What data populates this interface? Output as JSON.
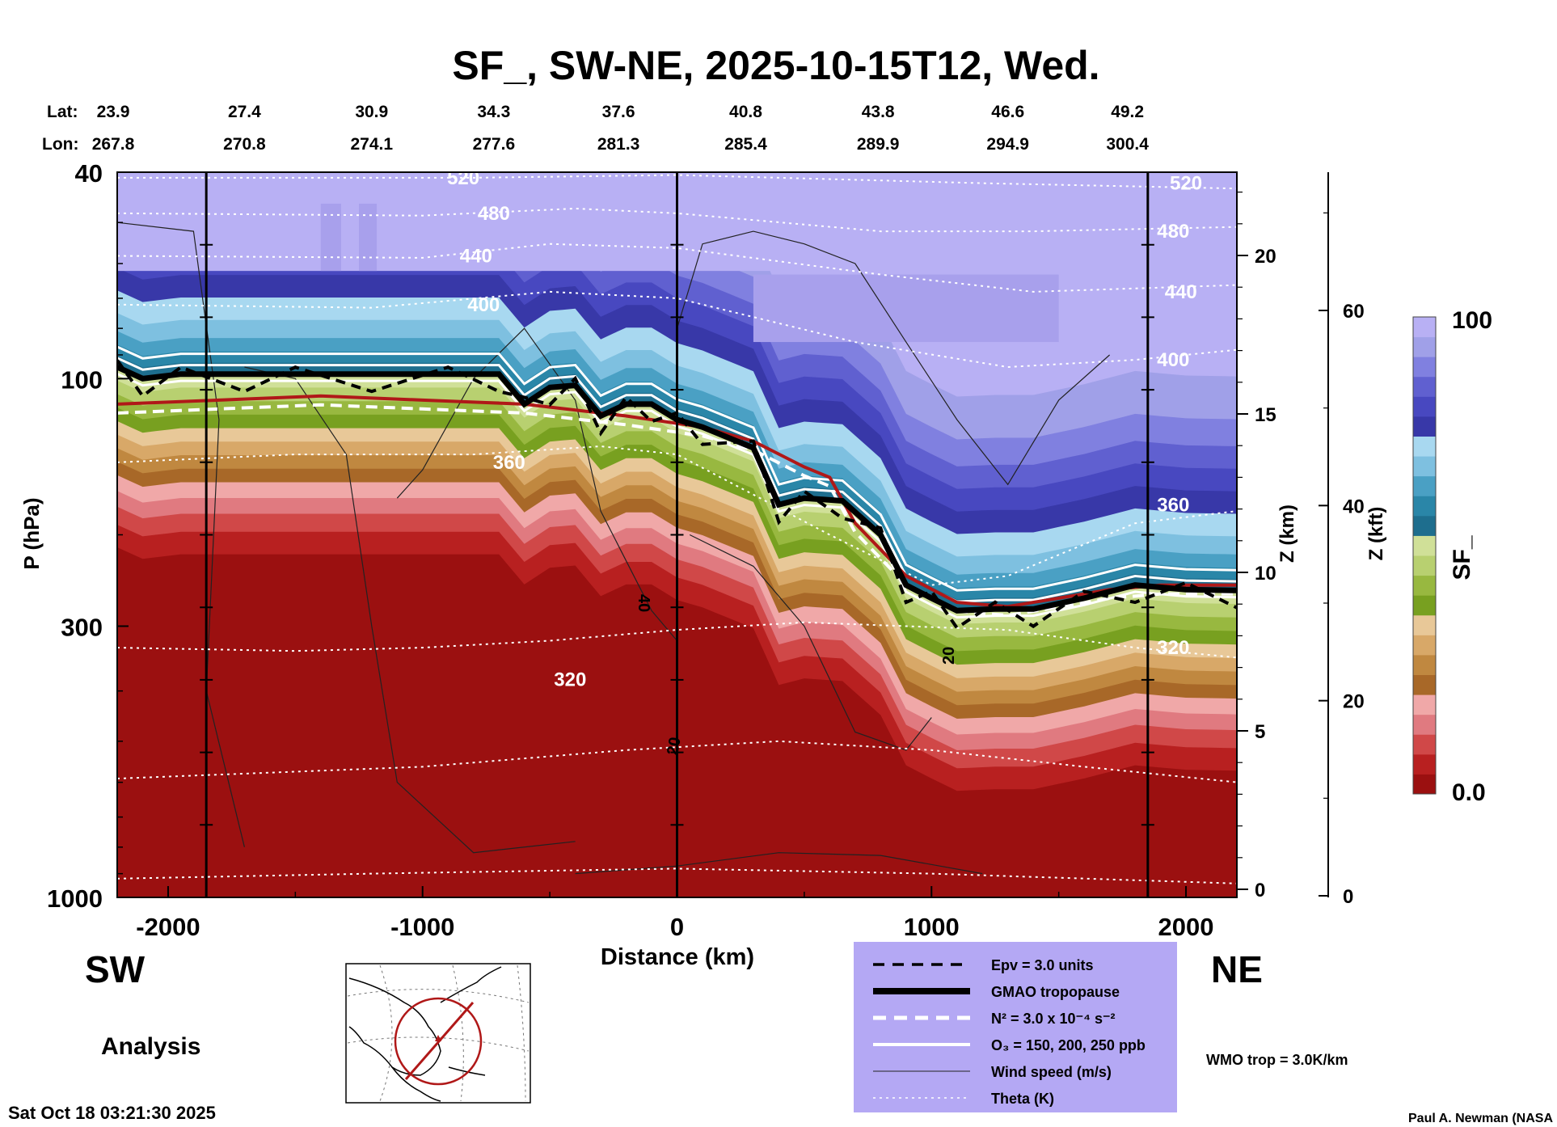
{
  "chart_data": {
    "type": "heatmap",
    "title": "SF_, SW-NE, 2025-10-15T12, Wed.",
    "xlabel": "Distance (km)",
    "ylabel": "P (hPa)",
    "y2label": "Z (km)",
    "y3label": "Z (kft)",
    "colorbar_label": "SF_",
    "colorbar_max_label": "100",
    "colorbar_min_label": "0.0",
    "colorbar_colors": [
      "#9b1010",
      "#b82020",
      "#d04848",
      "#e07a80",
      "#f0a8a8",
      "#a86828",
      "#c08840",
      "#d8a868",
      "#e8c898",
      "#78a020",
      "#98b840",
      "#b8d070",
      "#d0e098",
      "#1e6e8e",
      "#2a86a8",
      "#4aa0c4",
      "#7ec0e0",
      "#a8d8f0",
      "#3838a8",
      "#4848c0",
      "#6060d0",
      "#8080e0",
      "#a0a0e8",
      "#b8b0f4"
    ],
    "xlim": [
      -2200,
      2200
    ],
    "x_ticks": [
      "-2000",
      "-1000",
      "0",
      "1000",
      "2000"
    ],
    "x_tick_values": [
      -2000,
      -1000,
      0,
      1000,
      2000
    ],
    "p_ticks": [
      "40",
      "100",
      "300",
      "1000"
    ],
    "p_tick_values": [
      40,
      100,
      300,
      1000
    ],
    "z_km_ticks": [
      "20",
      "15",
      "10",
      "5",
      "0"
    ],
    "z_km_values": [
      20,
      15,
      10,
      5,
      0
    ],
    "z_kft_ticks": [
      "60",
      "40",
      "20",
      "0"
    ],
    "z_kft_values": [
      60,
      40,
      20,
      0
    ],
    "lat_label": "Lat:",
    "lon_label": "Lon:",
    "lat": [
      "23.9",
      "27.4",
      "30.9",
      "34.3",
      "37.6",
      "40.8",
      "43.8",
      "46.6",
      "49.2"
    ],
    "lon": [
      "267.8",
      "270.8",
      "274.1",
      "277.6",
      "281.3",
      "285.4",
      "289.9",
      "294.9",
      "300.4"
    ],
    "latlon_x": [
      -2200,
      -1700,
      -1200,
      -720,
      -230,
      270,
      790,
      1300,
      1770
    ],
    "vertical_lines_x": [
      -1850,
      0,
      1850
    ],
    "tropopause_gmao": [
      [
        -2200,
        95
      ],
      [
        -2100,
        100
      ],
      [
        -1950,
        98
      ],
      [
        -1700,
        98
      ],
      [
        -1500,
        98
      ],
      [
        -1200,
        98
      ],
      [
        -900,
        98
      ],
      [
        -700,
        98
      ],
      [
        -600,
        112
      ],
      [
        -500,
        104
      ],
      [
        -400,
        103
      ],
      [
        -300,
        118
      ],
      [
        -200,
        112
      ],
      [
        -100,
        112
      ],
      [
        0,
        120
      ],
      [
        100,
        124
      ],
      [
        300,
        136
      ],
      [
        400,
        175
      ],
      [
        500,
        170
      ],
      [
        650,
        172
      ],
      [
        800,
        200
      ],
      [
        900,
        250
      ],
      [
        1000,
        265
      ],
      [
        1100,
        280
      ],
      [
        1250,
        278
      ],
      [
        1400,
        278
      ],
      [
        1600,
        265
      ],
      [
        1800,
        250
      ],
      [
        2000,
        255
      ],
      [
        2200,
        256
      ]
    ],
    "tropopause_wmo": [
      [
        -2200,
        112
      ],
      [
        -1800,
        110
      ],
      [
        -1400,
        108
      ],
      [
        -1000,
        110
      ],
      [
        -600,
        112
      ],
      [
        -200,
        118
      ],
      [
        100,
        124
      ],
      [
        300,
        132
      ],
      [
        500,
        148
      ],
      [
        600,
        155
      ],
      [
        700,
        190
      ],
      [
        900,
        240
      ],
      [
        1100,
        270
      ],
      [
        1300,
        275
      ],
      [
        1500,
        265
      ],
      [
        1700,
        255
      ],
      [
        1900,
        250
      ],
      [
        2200,
        250
      ]
    ],
    "theta_labels": [
      "520",
      "480",
      "440",
      "400",
      "360",
      "320",
      "520",
      "480",
      "440",
      "400",
      "360",
      "320"
    ],
    "theta_label_pos": [
      [
        -840,
        41
      ],
      [
        -720,
        48
      ],
      [
        -790,
        58
      ],
      [
        -760,
        72
      ],
      [
        -660,
        145
      ],
      [
        -420,
        380
      ],
      [
        2000,
        42
      ],
      [
        1950,
        52
      ],
      [
        1980,
        68
      ],
      [
        1950,
        92
      ],
      [
        1950,
        175
      ],
      [
        1950,
        330
      ]
    ],
    "theta_lines": [
      [
        [
          -2200,
          41
        ],
        [
          -800,
          41
        ],
        [
          0,
          40.5
        ],
        [
          1200,
          42
        ],
        [
          2200,
          43
        ]
      ],
      [
        [
          -2200,
          48
        ],
        [
          -1000,
          48.5
        ],
        [
          -400,
          47
        ],
        [
          0,
          48
        ],
        [
          800,
          52
        ],
        [
          1400,
          52
        ],
        [
          2200,
          51
        ]
      ],
      [
        [
          -2200,
          58
        ],
        [
          -1000,
          58.5
        ],
        [
          -500,
          55
        ],
        [
          0,
          56
        ],
        [
          800,
          63
        ],
        [
          1400,
          68
        ],
        [
          2200,
          66
        ]
      ],
      [
        [
          -2200,
          72
        ],
        [
          -1200,
          73
        ],
        [
          -500,
          68
        ],
        [
          0,
          70
        ],
        [
          700,
          85
        ],
        [
          1300,
          95
        ],
        [
          1800,
          92
        ],
        [
          2200,
          88
        ]
      ],
      [
        [
          -2200,
          145
        ],
        [
          -1500,
          140
        ],
        [
          -800,
          140
        ],
        [
          -300,
          135
        ],
        [
          0,
          140
        ],
        [
          600,
          200
        ],
        [
          1000,
          250
        ],
        [
          1300,
          240
        ],
        [
          1800,
          190
        ],
        [
          2200,
          180
        ]
      ],
      [
        [
          -2200,
          330
        ],
        [
          -1500,
          335
        ],
        [
          -1000,
          330
        ],
        [
          -500,
          320
        ],
        [
          0,
          305
        ],
        [
          500,
          295
        ],
        [
          900,
          300
        ],
        [
          1300,
          305
        ],
        [
          1800,
          330
        ],
        [
          2200,
          345
        ]
      ]
    ],
    "ozone_label": "20",
    "wind_label": "40",
    "wind_label2": "20",
    "legend": [
      {
        "style": "dashed-thick",
        "label": "Epv = 3.0 units"
      },
      {
        "style": "solid-thick",
        "label": "GMAO tropopause"
      },
      {
        "style": "dashed-white",
        "label": "N² = 3.0 x 10⁻⁴ s⁻²"
      },
      {
        "style": "solid-white",
        "label": "O₃ = 150, 200, 250 ppb"
      },
      {
        "style": "solid-thin",
        "label": "Wind speed (m/s)"
      },
      {
        "style": "dotted",
        "label": "Theta (K)"
      }
    ],
    "wmo_label": "WMO trop = 3.0K/km",
    "wmo_color": "#b01818",
    "legend_bg": "#b4a8f4"
  },
  "labels": {
    "sw": "SW",
    "ne": "NE",
    "analysis": "Analysis",
    "timestamp": "Sat Oct 18 03:21:30 2025",
    "credit": "Paul A. Newman (NASA"
  },
  "icons": {
    "map": "globe-map-icon"
  }
}
